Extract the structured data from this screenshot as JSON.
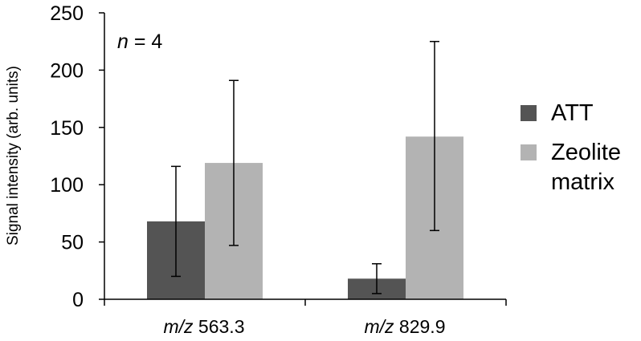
{
  "chart_data": {
    "type": "bar",
    "annotation": {
      "italic": "n",
      "rest": " = 4"
    },
    "ylabel": "Signal intensity (arb. units)",
    "xlabel": "",
    "ylim": [
      0,
      250
    ],
    "yticks": [
      "0",
      "50",
      "100",
      "150",
      "200",
      "250"
    ],
    "grid": false,
    "legend_position": "right",
    "categories": [
      {
        "italic": "m/z",
        "rest": " 563.3"
      },
      {
        "italic": "m/z",
        "rest": " 829.9"
      }
    ],
    "series": [
      {
        "name": "ATT",
        "color": "#545454",
        "values": [
          68,
          18
        ],
        "error_low": [
          20,
          5
        ],
        "error_high": [
          116,
          31
        ]
      },
      {
        "name": "Zeolite matrix",
        "name_lines": [
          "Zeolite",
          "matrix"
        ],
        "color": "#b3b3b3",
        "values": [
          119,
          142
        ],
        "error_low": [
          47,
          60
        ],
        "error_high": [
          191,
          225
        ]
      }
    ]
  }
}
